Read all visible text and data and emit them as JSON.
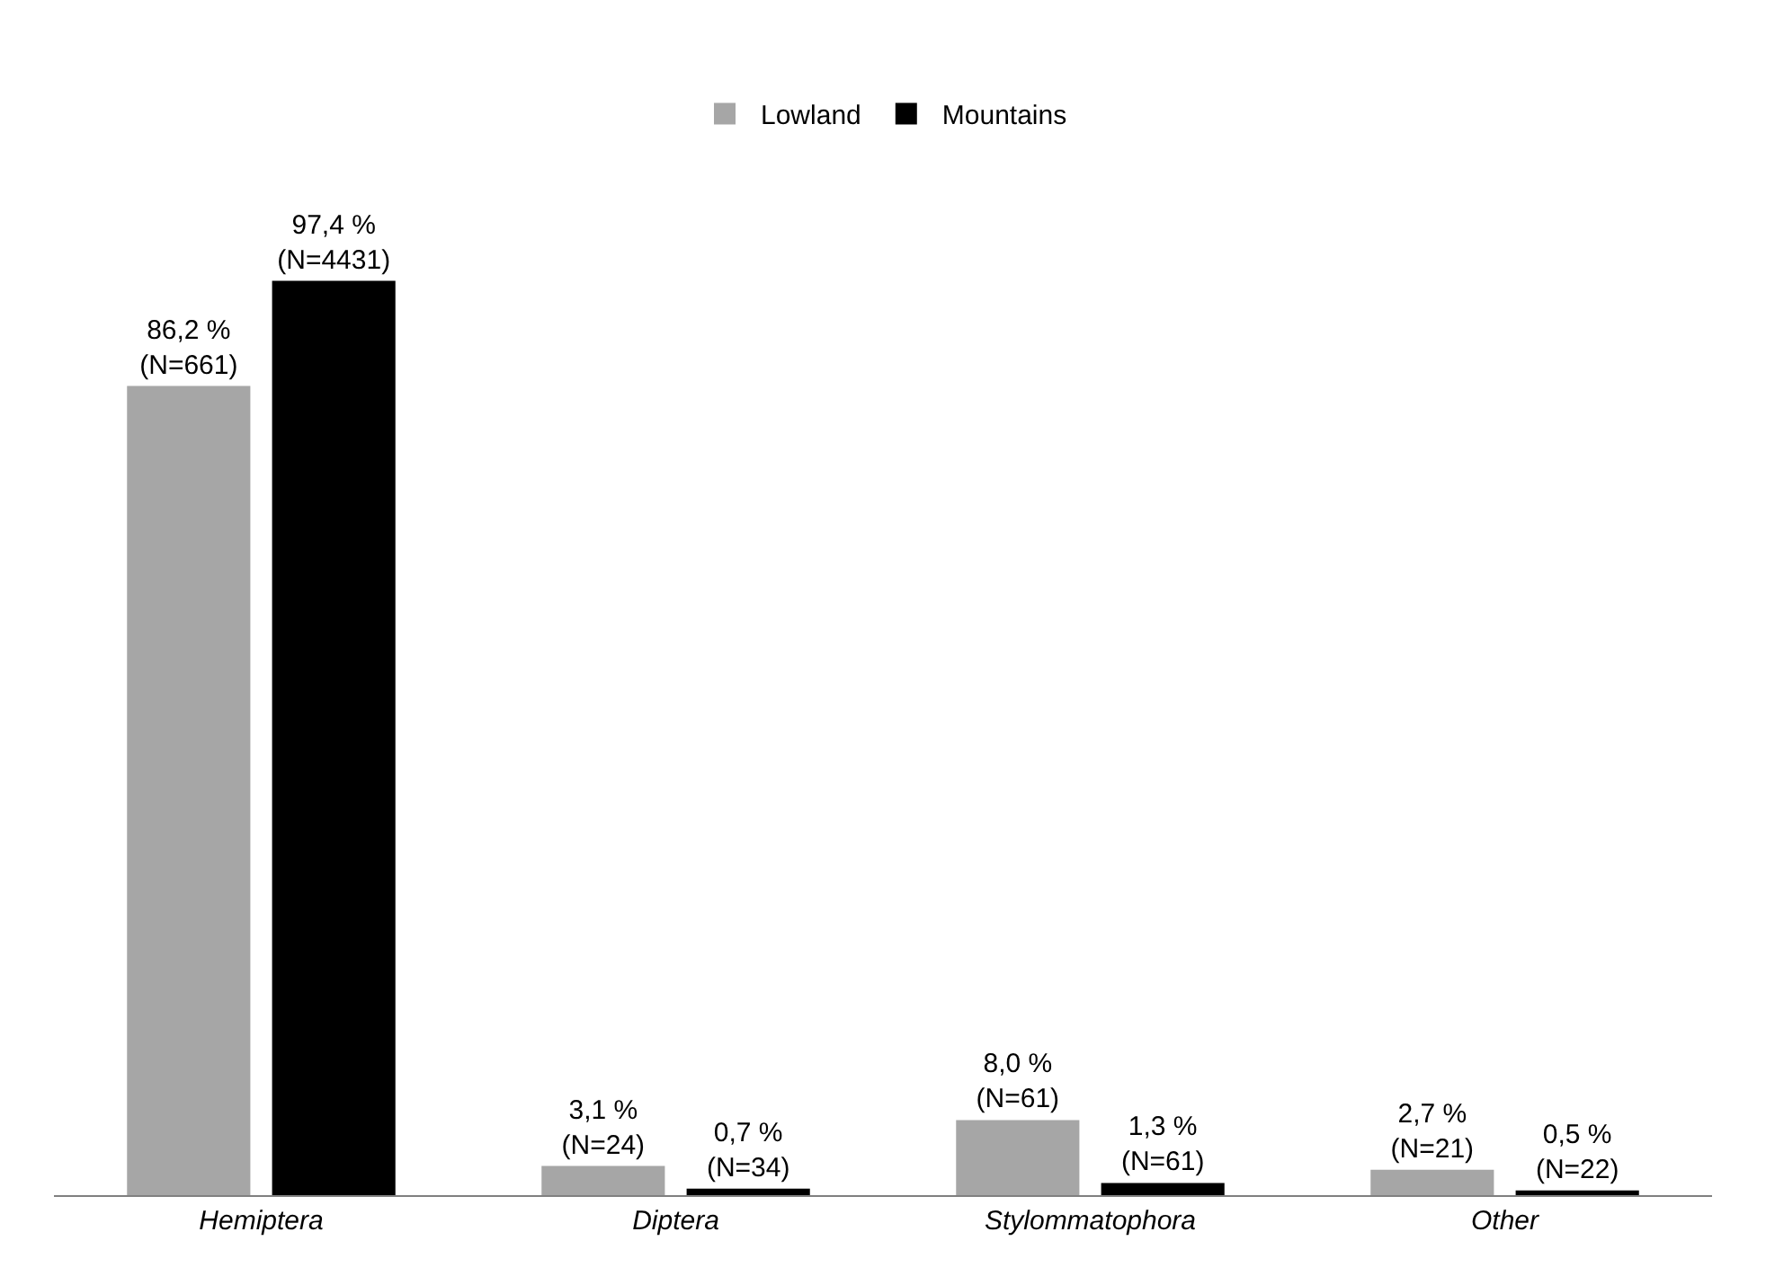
{
  "chart_data": {
    "type": "bar",
    "categories": [
      "Hemiptera",
      "Diptera",
      "Stylommatophora",
      "Other"
    ],
    "series": [
      {
        "name": "Lowland",
        "color": "#a6a6a6",
        "values": [
          86.2,
          3.1,
          8.0,
          2.7
        ],
        "value_labels": [
          "86,2 %\n(N=661)",
          "3,1 %\n(N=24)",
          "8,0 %\n(N=61)",
          "2,7 %\n(N=21)"
        ]
      },
      {
        "name": "Mountains",
        "color": "#000000",
        "values": [
          97.4,
          0.7,
          1.3,
          0.5
        ],
        "value_labels": [
          "97,4 %\n(N=4431)",
          "0,7 %\n(N=34)",
          "1,3 %\n(N=61)",
          "0,5 %\n(N=22)"
        ]
      }
    ],
    "legend": "top"
  }
}
